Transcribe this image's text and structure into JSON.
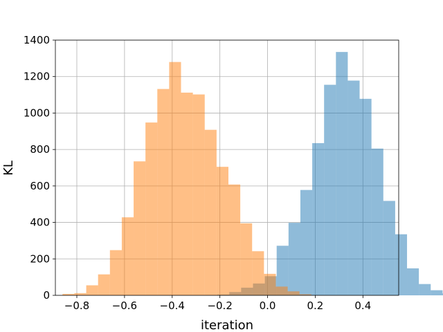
{
  "chart_data": {
    "type": "bar",
    "subtype": "histogram",
    "title": "",
    "xlabel": "iteration",
    "ylabel": "KL",
    "xlim": [
      -0.89,
      0.55
    ],
    "ylim": [
      0,
      1400
    ],
    "grid": true,
    "xticks": [
      "−0.8",
      "−0.6",
      "−0.4",
      "−0.2",
      "0.0",
      "0.2",
      "0.4"
    ],
    "xtick_values": [
      -0.8,
      -0.6,
      -0.4,
      -0.2,
      0.0,
      0.2,
      0.4
    ],
    "yticks": [
      "0",
      "200",
      "400",
      "600",
      "800",
      "1000",
      "1200",
      "1400"
    ],
    "ytick_values": [
      0,
      200,
      400,
      600,
      800,
      1000,
      1200,
      1400
    ],
    "alpha": 0.5,
    "series": [
      {
        "color": "#1f77b4",
        "bin_start": -0.26,
        "bin_width": 0.0497,
        "values": [
          1,
          4,
          18,
          42,
          65,
          105,
          272,
          398,
          578,
          835,
          1155,
          1335,
          1178,
          1078,
          805,
          518,
          335,
          148,
          62,
          28,
          11
        ]
      },
      {
        "color": "#ff7f0e",
        "bin_start": -0.86,
        "bin_width": 0.0497,
        "values": [
          8,
          12,
          55,
          115,
          248,
          428,
          735,
          948,
          1132,
          1280,
          1112,
          1102,
          908,
          705,
          608,
          395,
          242,
          118,
          48,
          22,
          6
        ]
      }
    ]
  }
}
